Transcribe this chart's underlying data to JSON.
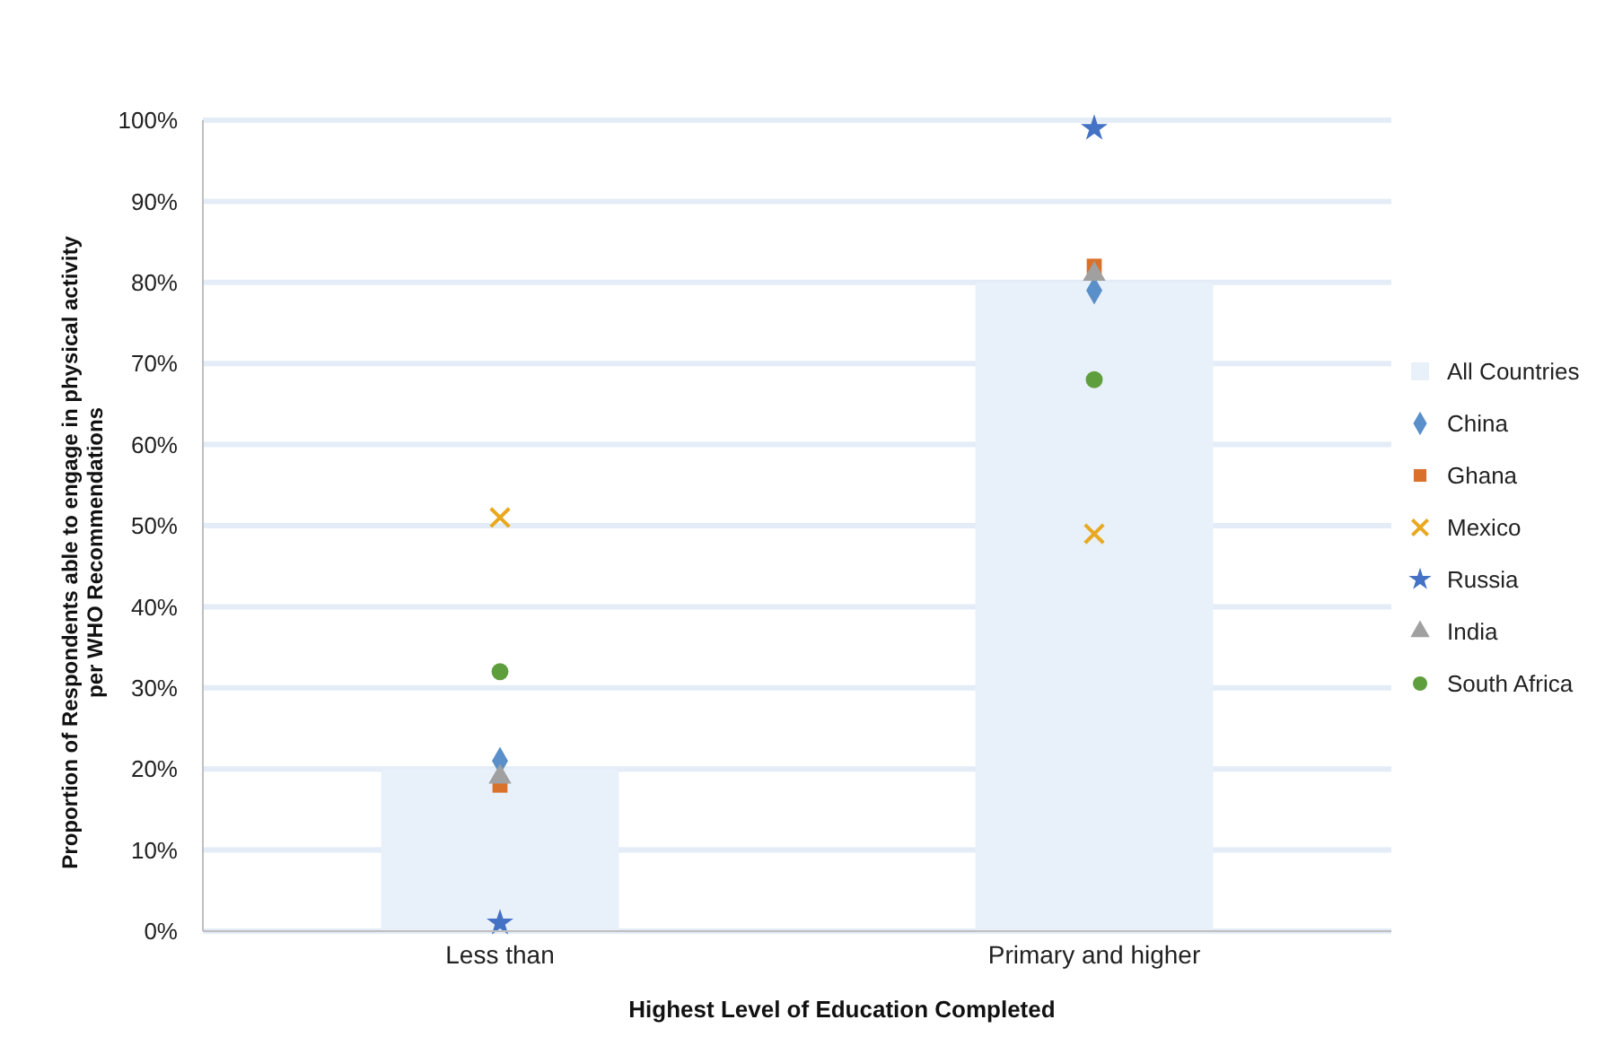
{
  "chart_data": {
    "type": "bar",
    "categories": [
      "Less than",
      "Primary and higher"
    ],
    "xlabel": "Highest Level of Education Completed",
    "ylabel": "Proportion of Respondents able to engage in physical activity\nper WHO Recommendations",
    "ylim": [
      0,
      100
    ],
    "yticks": [
      {
        "value": 0,
        "label": "0%"
      },
      {
        "value": 10,
        "label": "10%"
      },
      {
        "value": 20,
        "label": "20%"
      },
      {
        "value": 30,
        "label": "30%"
      },
      {
        "value": 40,
        "label": "40%"
      },
      {
        "value": 50,
        "label": "50%"
      },
      {
        "value": 60,
        "label": "60%"
      },
      {
        "value": 70,
        "label": "70%"
      },
      {
        "value": 80,
        "label": "80%"
      },
      {
        "value": 90,
        "label": "90%"
      },
      {
        "value": 100,
        "label": "100%"
      }
    ],
    "grid": "y",
    "legend": "right",
    "series": [
      {
        "name": "All Countries",
        "color": "#e8f0fa",
        "values": [
          20,
          80
        ]
      },
      {
        "name": "China",
        "type": "scatter",
        "marker": "diamond",
        "color": "#5b8fc9",
        "x": [
          "Less than",
          "Primary and higher"
        ],
        "values": [
          21,
          79
        ]
      },
      {
        "name": "Ghana",
        "type": "scatter",
        "marker": "square",
        "color": "#d9712b",
        "x": [
          "Less than",
          "Primary and higher"
        ],
        "values": [
          18,
          82
        ]
      },
      {
        "name": "Mexico",
        "type": "scatter",
        "marker": "cross",
        "color": "#e8a920",
        "x": [
          "Less than",
          "Primary and higher"
        ],
        "values": [
          51,
          49
        ]
      },
      {
        "name": "Russia",
        "type": "scatter",
        "marker": "star",
        "color": "#4472c4",
        "x": [
          "Less than",
          "Primary and higher"
        ],
        "values": [
          1,
          99
        ]
      },
      {
        "name": "India",
        "type": "scatter",
        "marker": "triangle",
        "color": "#a0a0a0",
        "x": [
          "Less than",
          "Primary and higher"
        ],
        "values": [
          19,
          81
        ]
      },
      {
        "name": "South Africa",
        "type": "scatter",
        "marker": "circle",
        "color": "#5f9e3d",
        "x": [
          "Less than",
          "Primary and higher"
        ],
        "values": [
          32,
          68
        ]
      }
    ]
  }
}
